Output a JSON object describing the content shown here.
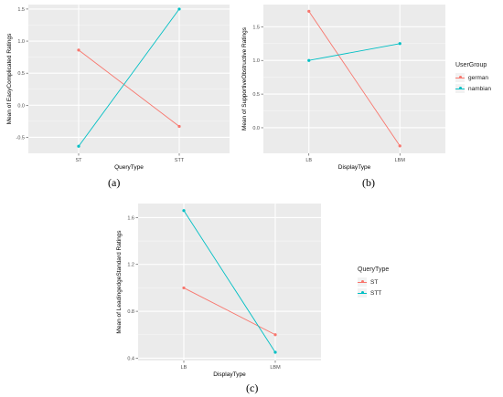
{
  "captions": [
    "(a)",
    "(b)",
    "(c)"
  ],
  "legends": [
    {
      "title": "UserGroup",
      "items": [
        {
          "label": "german",
          "color": "#F8766D"
        },
        {
          "label": "nambian",
          "color": "#00BFC4"
        }
      ]
    },
    {
      "title": "QueryType",
      "items": [
        {
          "label": "ST",
          "color": "#F8766D"
        },
        {
          "label": "STT",
          "color": "#00BFC4"
        }
      ]
    }
  ],
  "chart_data": [
    {
      "type": "line",
      "categories": [
        "ST",
        "STT"
      ],
      "xlabel": "QueryType",
      "ylabel": "Mean of EasyComplicated Ratings",
      "ylim": [
        -0.75,
        1.57
      ],
      "yticks": [
        -0.5,
        0.0,
        0.5,
        1.0,
        1.5
      ],
      "ytick_labels": [
        "-0.5",
        "0.0",
        "0.5",
        "1.0",
        "1.5"
      ],
      "series": [
        {
          "name": "german",
          "color": "#F8766D",
          "values": [
            0.86,
            -0.33
          ]
        },
        {
          "name": "nambian",
          "color": "#00BFC4",
          "values": [
            -0.64,
            1.5
          ]
        }
      ]
    },
    {
      "type": "line",
      "categories": [
        "LB",
        "LBM"
      ],
      "xlabel": "DisplayType",
      "ylabel": "Mean of SupportiveObstructive Ratings",
      "ylim": [
        -0.38,
        1.83
      ],
      "yticks": [
        0.0,
        0.5,
        1.0,
        1.5
      ],
      "ytick_labels": [
        "0.0",
        "0.5",
        "1.0",
        "1.5"
      ],
      "series": [
        {
          "name": "german",
          "color": "#F8766D",
          "values": [
            1.73,
            -0.27
          ]
        },
        {
          "name": "nambian",
          "color": "#00BFC4",
          "values": [
            1.0,
            1.25
          ]
        }
      ]
    },
    {
      "type": "line",
      "categories": [
        "LB",
        "LBM"
      ],
      "xlabel": "DisplayType",
      "ylabel": "Mean of LeadingedgeStandard Ratings",
      "ylim": [
        0.38,
        1.72
      ],
      "yticks": [
        0.4,
        0.8,
        1.2,
        1.6
      ],
      "ytick_labels": [
        "0.4",
        "0.8",
        "1.2",
        "1.6"
      ],
      "series": [
        {
          "name": "ST",
          "color": "#F8766D",
          "values": [
            1.0,
            0.6
          ]
        },
        {
          "name": "STT",
          "color": "#00BFC4",
          "values": [
            1.66,
            0.45
          ]
        }
      ]
    }
  ]
}
